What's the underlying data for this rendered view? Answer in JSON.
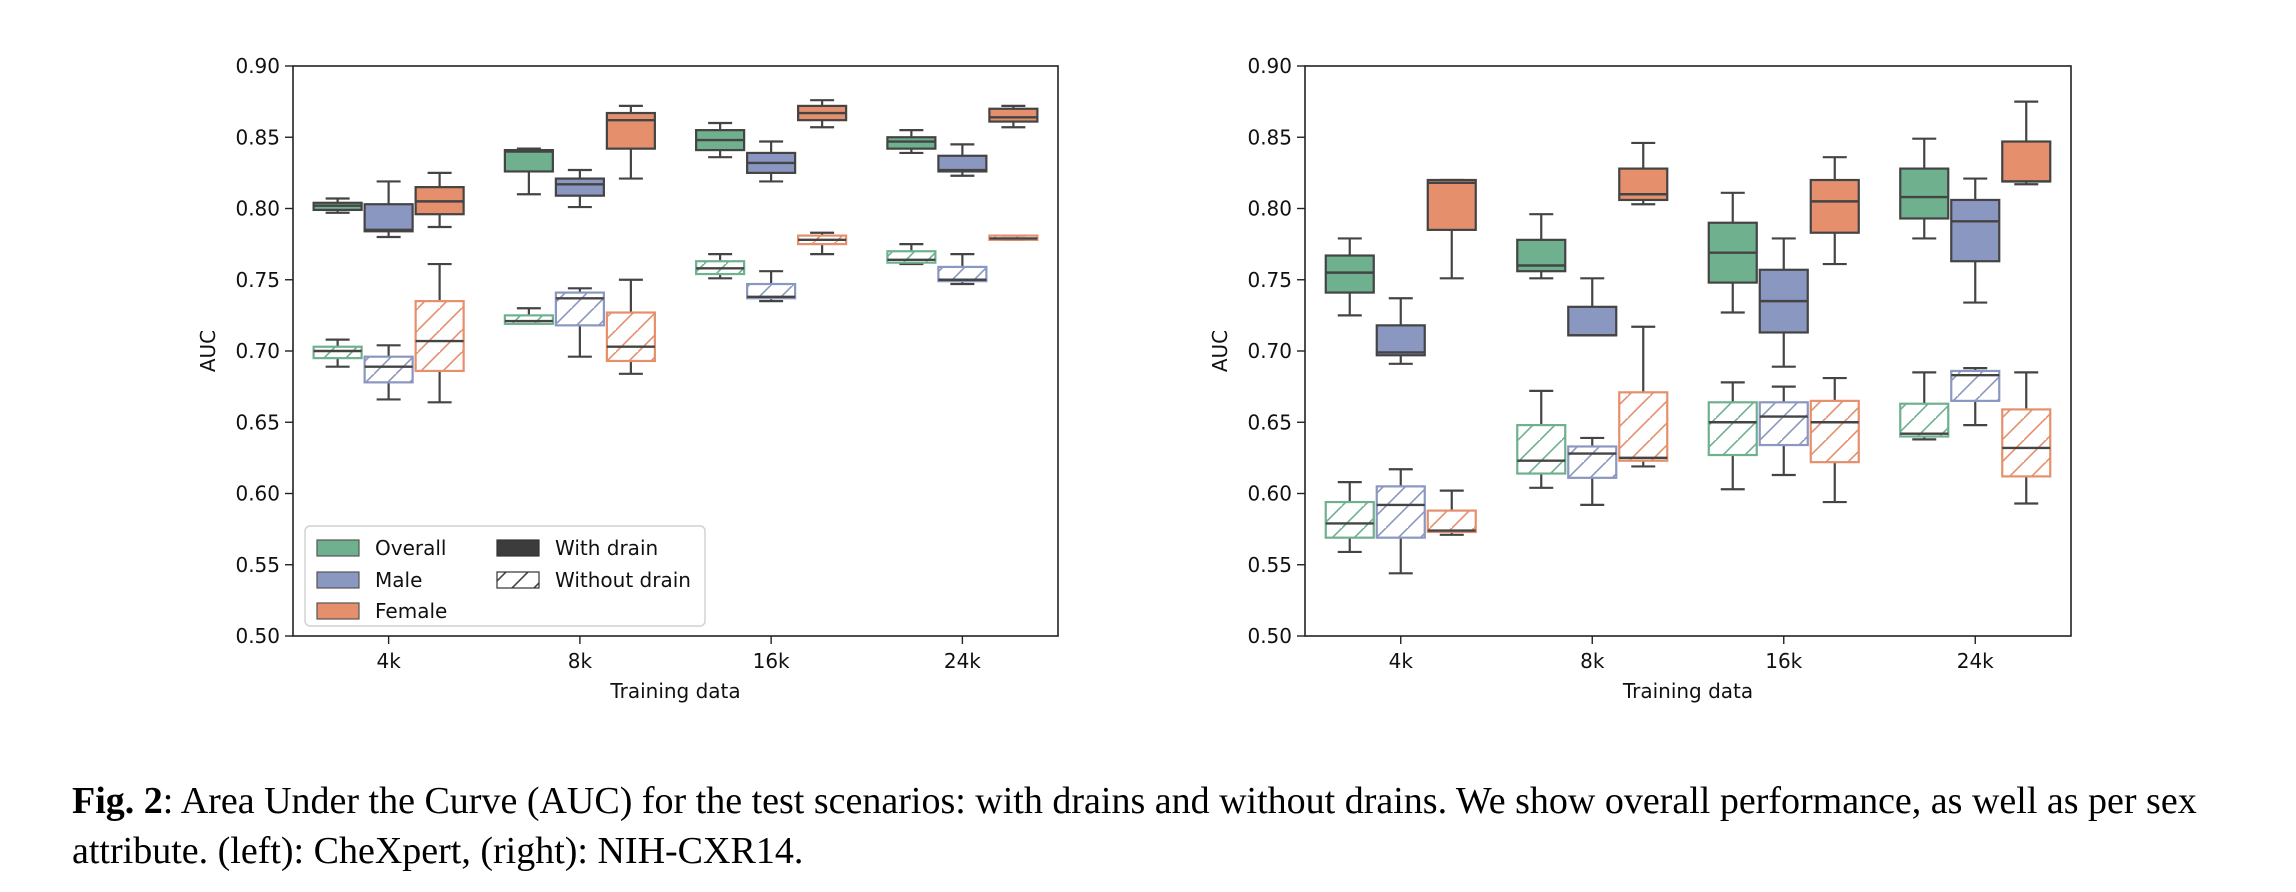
{
  "caption": {
    "label": "Fig. 2",
    "text": ": Area Under the Curve (AUC) for the test scenarios: with drains and without drains. We show overall performance, as well as per sex attribute. (left): CheXpert, (right): NIH-CXR14."
  },
  "colors": {
    "Overall": "#6fb08f",
    "Male": "#8a97c0",
    "Female": "#e58f6c",
    "median": "#444444",
    "with_drain_legend": "#3c3c3c"
  },
  "legend": {
    "placement": "lower-left",
    "groups": [
      "Overall",
      "Male",
      "Female"
    ],
    "conditions": [
      "With drain",
      "Without drain"
    ]
  },
  "chart_data": [
    {
      "type": "box",
      "xlabel": "Training data",
      "ylabel": "AUC",
      "ylim": [
        0.5,
        0.9
      ],
      "yticks": [
        "0.50",
        "0.55",
        "0.60",
        "0.65",
        "0.70",
        "0.75",
        "0.80",
        "0.85",
        "0.90"
      ],
      "categories": [
        "4k",
        "8k",
        "16k",
        "24k"
      ],
      "show_legend": true,
      "series": [
        {
          "group": "Overall",
          "condition": "With drain",
          "boxes": [
            {
              "min": 0.797,
              "q1": 0.799,
              "median": 0.802,
              "q3": 0.804,
              "max": 0.807
            },
            {
              "min": 0.81,
              "q1": 0.826,
              "median": 0.84,
              "q3": 0.841,
              "max": 0.842
            },
            {
              "min": 0.836,
              "q1": 0.841,
              "median": 0.848,
              "q3": 0.855,
              "max": 0.86
            },
            {
              "min": 0.839,
              "q1": 0.842,
              "median": 0.847,
              "q3": 0.85,
              "max": 0.855
            }
          ]
        },
        {
          "group": "Male",
          "condition": "With drain",
          "boxes": [
            {
              "min": 0.78,
              "q1": 0.784,
              "median": 0.785,
              "q3": 0.803,
              "max": 0.819
            },
            {
              "min": 0.801,
              "q1": 0.809,
              "median": 0.817,
              "q3": 0.821,
              "max": 0.827
            },
            {
              "min": 0.819,
              "q1": 0.825,
              "median": 0.832,
              "q3": 0.839,
              "max": 0.847
            },
            {
              "min": 0.823,
              "q1": 0.826,
              "median": 0.827,
              "q3": 0.837,
              "max": 0.845
            }
          ]
        },
        {
          "group": "Female",
          "condition": "With drain",
          "boxes": [
            {
              "min": 0.787,
              "q1": 0.796,
              "median": 0.805,
              "q3": 0.815,
              "max": 0.825
            },
            {
              "min": 0.821,
              "q1": 0.842,
              "median": 0.862,
              "q3": 0.867,
              "max": 0.872
            },
            {
              "min": 0.857,
              "q1": 0.862,
              "median": 0.867,
              "q3": 0.872,
              "max": 0.876
            },
            {
              "min": 0.857,
              "q1": 0.861,
              "median": 0.864,
              "q3": 0.87,
              "max": 0.872
            }
          ]
        },
        {
          "group": "Overall",
          "condition": "Without drain",
          "boxes": [
            {
              "min": 0.689,
              "q1": 0.695,
              "median": 0.7,
              "q3": 0.703,
              "max": 0.708
            },
            {
              "min": 0.719,
              "q1": 0.719,
              "median": 0.721,
              "q3": 0.725,
              "max": 0.73
            },
            {
              "min": 0.751,
              "q1": 0.754,
              "median": 0.758,
              "q3": 0.763,
              "max": 0.768
            },
            {
              "min": 0.761,
              "q1": 0.762,
              "median": 0.764,
              "q3": 0.77,
              "max": 0.775
            }
          ]
        },
        {
          "group": "Male",
          "condition": "Without drain",
          "boxes": [
            {
              "min": 0.666,
              "q1": 0.678,
              "median": 0.689,
              "q3": 0.696,
              "max": 0.704
            },
            {
              "min": 0.696,
              "q1": 0.718,
              "median": 0.737,
              "q3": 0.741,
              "max": 0.744
            },
            {
              "min": 0.735,
              "q1": 0.737,
              "median": 0.738,
              "q3": 0.747,
              "max": 0.756
            },
            {
              "min": 0.747,
              "q1": 0.749,
              "median": 0.75,
              "q3": 0.759,
              "max": 0.768
            }
          ]
        },
        {
          "group": "Female",
          "condition": "Without drain",
          "boxes": [
            {
              "min": 0.664,
              "q1": 0.686,
              "median": 0.707,
              "q3": 0.735,
              "max": 0.761
            },
            {
              "min": 0.684,
              "q1": 0.693,
              "median": 0.703,
              "q3": 0.727,
              "max": 0.75
            },
            {
              "min": 0.768,
              "q1": 0.775,
              "median": 0.778,
              "q3": 0.781,
              "max": 0.783
            },
            {
              "min": 0.778,
              "q1": 0.778,
              "median": 0.779,
              "q3": 0.781,
              "max": 0.781
            }
          ]
        }
      ]
    },
    {
      "type": "box",
      "xlabel": "Training data",
      "ylabel": "AUC",
      "ylim": [
        0.5,
        0.9
      ],
      "yticks": [
        "0.50",
        "0.55",
        "0.60",
        "0.65",
        "0.70",
        "0.75",
        "0.80",
        "0.85",
        "0.90"
      ],
      "categories": [
        "4k",
        "8k",
        "16k",
        "24k"
      ],
      "show_legend": false,
      "series": [
        {
          "group": "Overall",
          "condition": "With drain",
          "boxes": [
            {
              "min": 0.725,
              "q1": 0.741,
              "median": 0.755,
              "q3": 0.767,
              "max": 0.779
            },
            {
              "min": 0.751,
              "q1": 0.756,
              "median": 0.76,
              "q3": 0.778,
              "max": 0.796
            },
            {
              "min": 0.727,
              "q1": 0.748,
              "median": 0.769,
              "q3": 0.79,
              "max": 0.811
            },
            {
              "min": 0.779,
              "q1": 0.793,
              "median": 0.808,
              "q3": 0.828,
              "max": 0.849
            }
          ]
        },
        {
          "group": "Male",
          "condition": "With drain",
          "boxes": [
            {
              "min": 0.691,
              "q1": 0.697,
              "median": 0.699,
              "q3": 0.718,
              "max": 0.737
            },
            {
              "min": 0.711,
              "q1": 0.711,
              "median": 0.711,
              "q3": 0.731,
              "max": 0.751
            },
            {
              "min": 0.689,
              "q1": 0.713,
              "median": 0.735,
              "q3": 0.757,
              "max": 0.779
            },
            {
              "min": 0.734,
              "q1": 0.763,
              "median": 0.791,
              "q3": 0.806,
              "max": 0.821
            }
          ]
        },
        {
          "group": "Female",
          "condition": "With drain",
          "boxes": [
            {
              "min": 0.751,
              "q1": 0.785,
              "median": 0.818,
              "q3": 0.82,
              "max": 0.82
            },
            {
              "min": 0.803,
              "q1": 0.806,
              "median": 0.81,
              "q3": 0.828,
              "max": 0.846
            },
            {
              "min": 0.761,
              "q1": 0.783,
              "median": 0.805,
              "q3": 0.82,
              "max": 0.836
            },
            {
              "min": 0.817,
              "q1": 0.819,
              "median": 0.819,
              "q3": 0.847,
              "max": 0.875
            }
          ]
        },
        {
          "group": "Overall",
          "condition": "Without drain",
          "boxes": [
            {
              "min": 0.559,
              "q1": 0.569,
              "median": 0.579,
              "q3": 0.594,
              "max": 0.608
            },
            {
              "min": 0.604,
              "q1": 0.614,
              "median": 0.623,
              "q3": 0.648,
              "max": 0.672
            },
            {
              "min": 0.603,
              "q1": 0.627,
              "median": 0.65,
              "q3": 0.664,
              "max": 0.678
            },
            {
              "min": 0.638,
              "q1": 0.64,
              "median": 0.642,
              "q3": 0.663,
              "max": 0.685
            }
          ]
        },
        {
          "group": "Male",
          "condition": "Without drain",
          "boxes": [
            {
              "min": 0.544,
              "q1": 0.569,
              "median": 0.592,
              "q3": 0.605,
              "max": 0.617
            },
            {
              "min": 0.592,
              "q1": 0.611,
              "median": 0.628,
              "q3": 0.633,
              "max": 0.639
            },
            {
              "min": 0.613,
              "q1": 0.634,
              "median": 0.654,
              "q3": 0.664,
              "max": 0.675
            },
            {
              "min": 0.648,
              "q1": 0.665,
              "median": 0.683,
              "q3": 0.686,
              "max": 0.688
            }
          ]
        },
        {
          "group": "Female",
          "condition": "Without drain",
          "boxes": [
            {
              "min": 0.571,
              "q1": 0.573,
              "median": 0.574,
              "q3": 0.588,
              "max": 0.602
            },
            {
              "min": 0.619,
              "q1": 0.623,
              "median": 0.625,
              "q3": 0.671,
              "max": 0.717
            },
            {
              "min": 0.594,
              "q1": 0.622,
              "median": 0.65,
              "q3": 0.665,
              "max": 0.681
            },
            {
              "min": 0.593,
              "q1": 0.612,
              "median": 0.632,
              "q3": 0.659,
              "max": 0.685
            }
          ]
        }
      ]
    }
  ]
}
